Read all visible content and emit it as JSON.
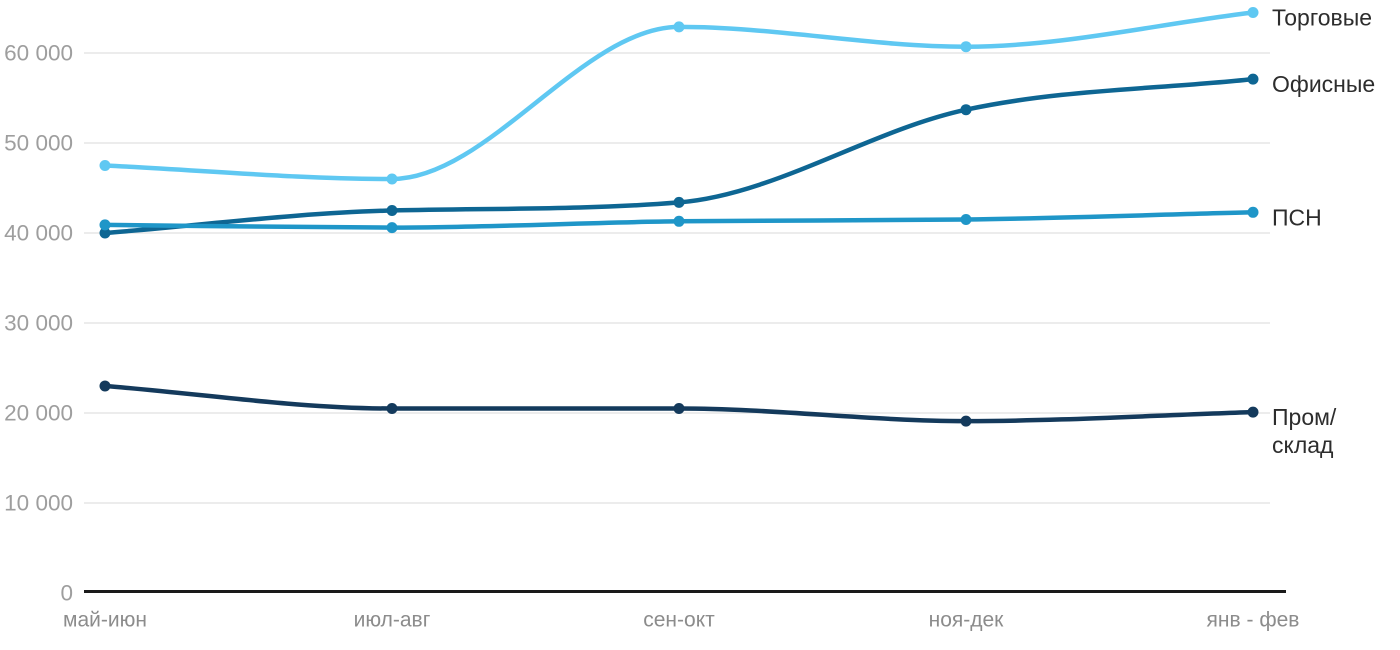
{
  "chart_data": {
    "type": "line",
    "title": "",
    "xlabel": "",
    "ylabel": "",
    "categories": [
      "май-июн",
      "июл-авг",
      "сен-окт",
      "ноя-дек",
      "янв - фев"
    ],
    "series": [
      {
        "name": "Торговые",
        "key": "torgovye",
        "color": "#5FC8F2",
        "legend_lines": [
          "Торговые"
        ],
        "values": [
          47500,
          46000,
          62900,
          60700,
          64500
        ]
      },
      {
        "name": "Офисные",
        "key": "ofisnye",
        "color": "#0E6693",
        "legend_lines": [
          "Офисные"
        ],
        "values": [
          40000,
          42500,
          43400,
          53700,
          57100
        ]
      },
      {
        "name": "ПСН",
        "key": "psn",
        "color": "#1F96C8",
        "legend_lines": [
          "ПСН"
        ],
        "values": [
          40900,
          40600,
          41300,
          41500,
          42300
        ]
      },
      {
        "name": "Пром/склад",
        "key": "prom-sklad",
        "color": "#143A5C",
        "legend_lines": [
          "Пром/",
          "склад"
        ],
        "values": [
          23000,
          20500,
          20500,
          19100,
          20100
        ]
      }
    ],
    "yticks": [
      {
        "value": 0,
        "label": "0"
      },
      {
        "value": 10000,
        "label": "10 000"
      },
      {
        "value": 20000,
        "label": "20 000"
      },
      {
        "value": 30000,
        "label": "30 000"
      },
      {
        "value": 40000,
        "label": "40 000"
      },
      {
        "value": 50000,
        "label": "50 000"
      },
      {
        "value": 60000,
        "label": "60 000"
      }
    ],
    "ylim": [
      0,
      65000
    ],
    "grid": "horizontal-only",
    "legend_position": "right-of-last-point",
    "curve": "smooth-monotone"
  },
  "colors": {
    "background": "#ffffff",
    "grid_line": "#e6e6e6",
    "axis_line": "#1a1a1a",
    "y_tick_label": "#9e9e9e",
    "x_tick_label": "#8c8c8c",
    "legend_text": "#2d2d2d"
  }
}
